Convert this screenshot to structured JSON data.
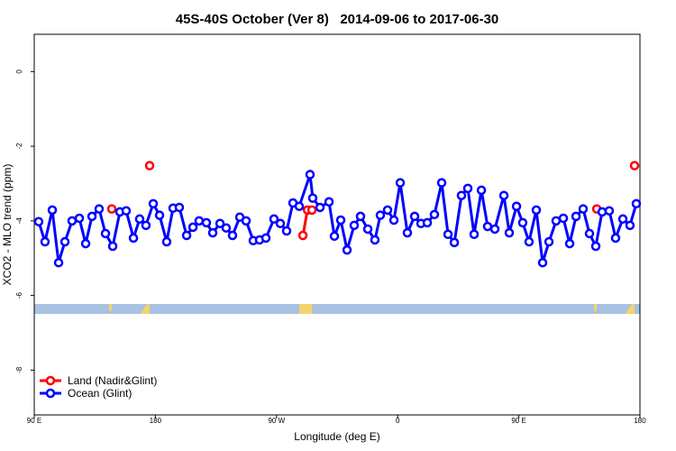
{
  "chart_data": {
    "type": "line",
    "title": "45S-40S October (Ver 8)   2014-09-06 to 2017-06-30",
    "x_label": "Longitude (deg E)",
    "y_label": "XCO2 - MLO trend (ppm)",
    "xlim": [
      90,
      540
    ],
    "ylim": [
      -9.2,
      1.0
    ],
    "xticks": [
      {
        "value": 90,
        "label": "90 E"
      },
      {
        "value": 180,
        "label": "180"
      },
      {
        "value": 270,
        "label": "90 W"
      },
      {
        "value": 360,
        "label": "0"
      },
      {
        "value": 450,
        "label": "90 E"
      },
      {
        "value": 540,
        "label": "180"
      }
    ],
    "yticks": [
      0,
      -2,
      -4,
      -6,
      -8
    ],
    "legend": "bottom-left",
    "series": [
      {
        "name": "Land (Nadir&Glint)",
        "color": "#ff0000",
        "x": [
          147.6,
          null,
          175.7,
          null,
          289.6,
          293.0,
          296.3,
          null,
          507.9,
          null,
          536.0
        ],
        "values": [
          -3.68,
          null,
          -2.52,
          null,
          -4.39,
          -3.71,
          -3.71,
          null,
          -3.68,
          null,
          -2.52
        ]
      },
      {
        "name": "Ocean (Glint)",
        "color": "#0000ff",
        "x": [
          93.3,
          98.0,
          103.4,
          108.1,
          112.8,
          118.1,
          123.5,
          128.2,
          132.9,
          138.2,
          142.9,
          148.3,
          153.6,
          158.3,
          163.7,
          168.3,
          173.0,
          178.4,
          183.1,
          188.4,
          193.1,
          197.8,
          203.2,
          207.9,
          212.5,
          217.9,
          222.6,
          228.0,
          232.6,
          237.3,
          242.7,
          247.4,
          252.7,
          257.4,
          262.1,
          268.1,
          272.8,
          277.5,
          282.2,
          286.9,
          294.9,
          296.9,
          302.3,
          309.0,
          313.0,
          317.7,
          322.4,
          327.7,
          332.4,
          337.8,
          343.1,
          347.1,
          352.5,
          357.2,
          361.9,
          367.2,
          372.6,
          377.3,
          382.0,
          387.3,
          392.7,
          397.4,
          402.1,
          407.4,
          412.1,
          416.8,
          422.2,
          426.8,
          432.2,
          438.9,
          442.9,
          448.3,
          452.9,
          457.6,
          463.0,
          467.7,
          472.4,
          477.7,
          483.1,
          487.8,
          492.5,
          497.8,
          502.5,
          507.2,
          511.9,
          517.2,
          521.9,
          527.3,
          532.6,
          537.3
        ],
        "values": [
          -4.02,
          -4.56,
          -3.71,
          -5.12,
          -4.56,
          -4.0,
          -3.93,
          -4.61,
          -3.88,
          -3.68,
          -4.34,
          -4.68,
          -3.76,
          -3.73,
          -4.46,
          -3.95,
          -4.12,
          -3.54,
          -3.85,
          -4.56,
          -3.66,
          -3.64,
          -4.39,
          -4.17,
          -4.0,
          -4.05,
          -4.32,
          -4.07,
          -4.19,
          -4.39,
          -3.9,
          -4.0,
          -4.53,
          -4.51,
          -4.46,
          -3.95,
          -4.07,
          -4.27,
          -3.52,
          -3.61,
          -2.76,
          -3.39,
          -3.64,
          -3.49,
          -4.41,
          -3.98,
          -4.78,
          -4.12,
          -3.88,
          -4.22,
          -4.51,
          -3.85,
          -3.71,
          -3.98,
          -2.98,
          -4.32,
          -3.88,
          -4.07,
          -4.05,
          -3.83,
          -2.98,
          -4.36,
          -4.58,
          -3.32,
          -3.13,
          -4.36,
          -3.18,
          -4.15,
          -4.22,
          -3.32,
          -4.32,
          -3.61,
          -4.05,
          -4.56,
          -3.71,
          -5.12,
          -4.56,
          -4.0,
          -3.93,
          -4.61,
          -3.88,
          -3.68,
          -4.34,
          -4.68,
          -3.76,
          -3.73,
          -4.46,
          -3.95,
          -4.12,
          -3.54
        ]
      }
    ]
  }
}
